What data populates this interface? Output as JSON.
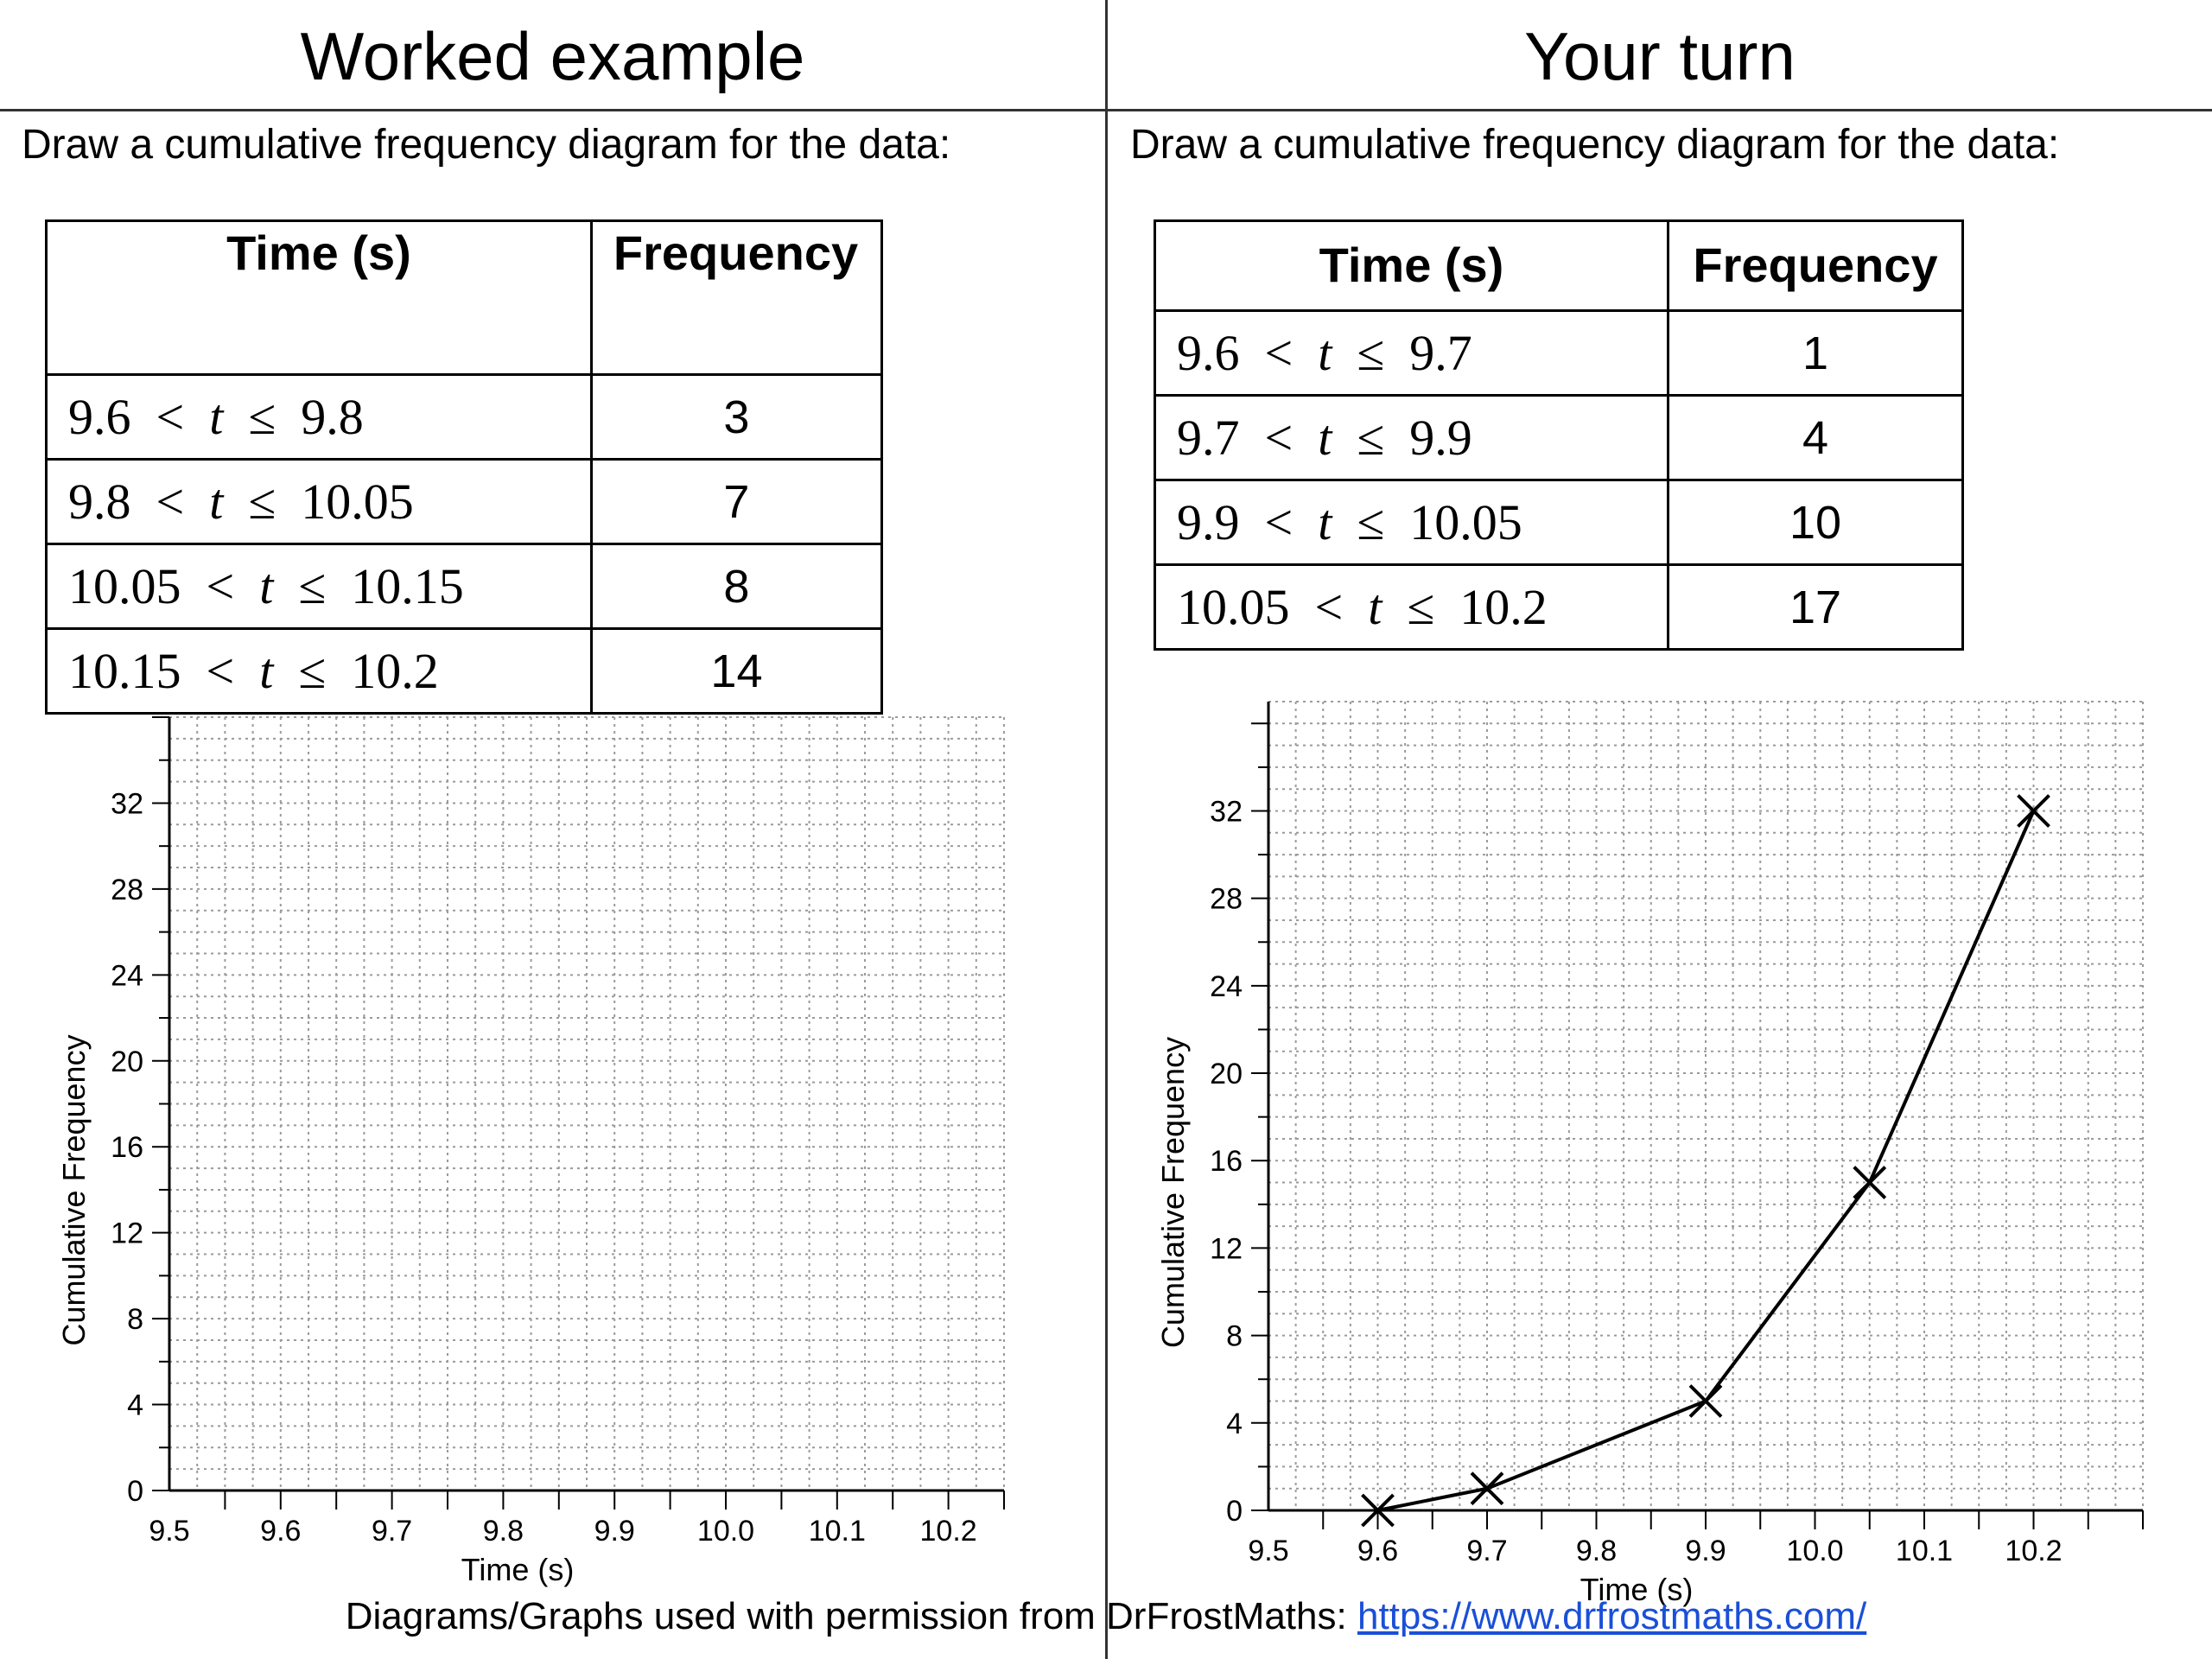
{
  "left_panel": {
    "heading": "Worked example",
    "instruction": "Draw a cumulative frequency diagram for the data:",
    "table": {
      "time_header": "Time (s)",
      "freq_header": "Frequency",
      "rows": [
        {
          "a": "9.6",
          "b": "9.8",
          "f": "3"
        },
        {
          "a": "9.8",
          "b": "10.05",
          "f": "7"
        },
        {
          "a": "10.05",
          "b": "10.15",
          "f": "8"
        },
        {
          "a": "10.15",
          "b": "10.2",
          "f": "14"
        }
      ]
    }
  },
  "right_panel": {
    "heading": "Your turn",
    "instruction": "Draw a cumulative frequency diagram for the data:",
    "table": {
      "time_header": "Time (s)",
      "freq_header": "Frequency",
      "rows": [
        {
          "a": "9.6",
          "b": "9.7",
          "f": "1"
        },
        {
          "a": "9.7",
          "b": "9.9",
          "f": "4"
        },
        {
          "a": "9.9",
          "b": "10.05",
          "f": "10"
        },
        {
          "a": "10.05",
          "b": "10.2",
          "f": "17"
        }
      ]
    }
  },
  "symbols": {
    "lt": "<",
    "le": "≤",
    "var": "t"
  },
  "footer": {
    "text": "Diagrams/Graphs used with permission from DrFrostMaths:",
    "link": "https://www.drfrostmaths.com/"
  },
  "chart_data": [
    {
      "type": "line",
      "xlabel": "Time (s)",
      "ylabel": "Cumulative Frequency",
      "xlim": [
        9.5,
        10.25
      ],
      "ylim": [
        0,
        36
      ],
      "x_ticks": [
        "9.5",
        "9.6",
        "9.7",
        "9.8",
        "9.9",
        "10.0",
        "10.1",
        "10.2"
      ],
      "y_ticks": [
        "0",
        "4",
        "8",
        "12",
        "16",
        "20",
        "24",
        "28",
        "32"
      ],
      "grid": true,
      "series": []
    },
    {
      "type": "line",
      "xlabel": "Time (s)",
      "ylabel": "Cumulative Frequency",
      "xlim": [
        9.5,
        10.3
      ],
      "ylim": [
        0,
        37
      ],
      "x_ticks": [
        "9.5",
        "9.6",
        "9.7",
        "9.8",
        "9.9",
        "10.0",
        "10.1",
        "10.2"
      ],
      "y_ticks": [
        "0",
        "4",
        "8",
        "12",
        "16",
        "20",
        "24",
        "28",
        "32"
      ],
      "grid": true,
      "marker": "cross",
      "series": [
        {
          "x": [
            9.6,
            9.7,
            9.9,
            10.05,
            10.2
          ],
          "y": [
            0,
            1,
            5,
            15,
            32
          ]
        }
      ]
    }
  ]
}
